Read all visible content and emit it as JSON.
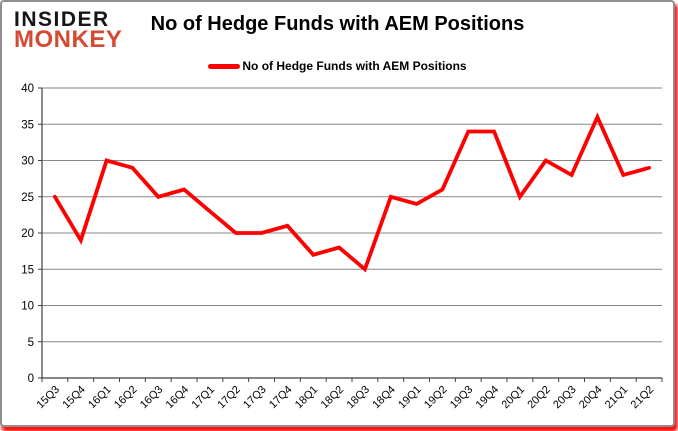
{
  "logo": {
    "line1": "INSIDER",
    "line2": "MONKEY"
  },
  "header": {
    "title": "No of Hedge Funds with AEM Positions"
  },
  "legend": {
    "label": "No of Hedge Funds with AEM Positions"
  },
  "colors": {
    "line_red": "#ff0000",
    "logo_black": "#161616",
    "logo_red": "#d44a32",
    "grid_gray": "#878787",
    "axis_gray": "#3f3f3f",
    "text_black": "#000000",
    "card_border": "#8f8f8f",
    "glow_red": "#ff0000"
  },
  "chart_data": {
    "type": "line",
    "title": "No of Hedge Funds with AEM Positions",
    "categories": [
      "15Q3",
      "15Q4",
      "16Q1",
      "16Q2",
      "16Q3",
      "16Q4",
      "17Q1",
      "17Q2",
      "17Q3",
      "17Q4",
      "18Q1",
      "18Q2",
      "18Q3",
      "18Q4",
      "19Q1",
      "19Q2",
      "19Q3",
      "19Q4",
      "20Q1",
      "20Q2",
      "20Q3",
      "20Q4",
      "21Q1",
      "21Q2"
    ],
    "series": [
      {
        "name": "No of Hedge Funds with AEM Positions",
        "color": "#ff0000",
        "values": [
          25,
          19,
          30,
          29,
          25,
          26,
          23,
          20,
          20,
          21,
          17,
          18,
          15,
          25,
          24,
          26,
          34,
          34,
          25,
          30,
          28,
          36,
          28,
          29
        ]
      }
    ],
    "ylim": [
      0,
      40
    ],
    "ytick_step": 5,
    "grid": true,
    "legend_position": "top-center",
    "xlabel": "",
    "ylabel": ""
  }
}
